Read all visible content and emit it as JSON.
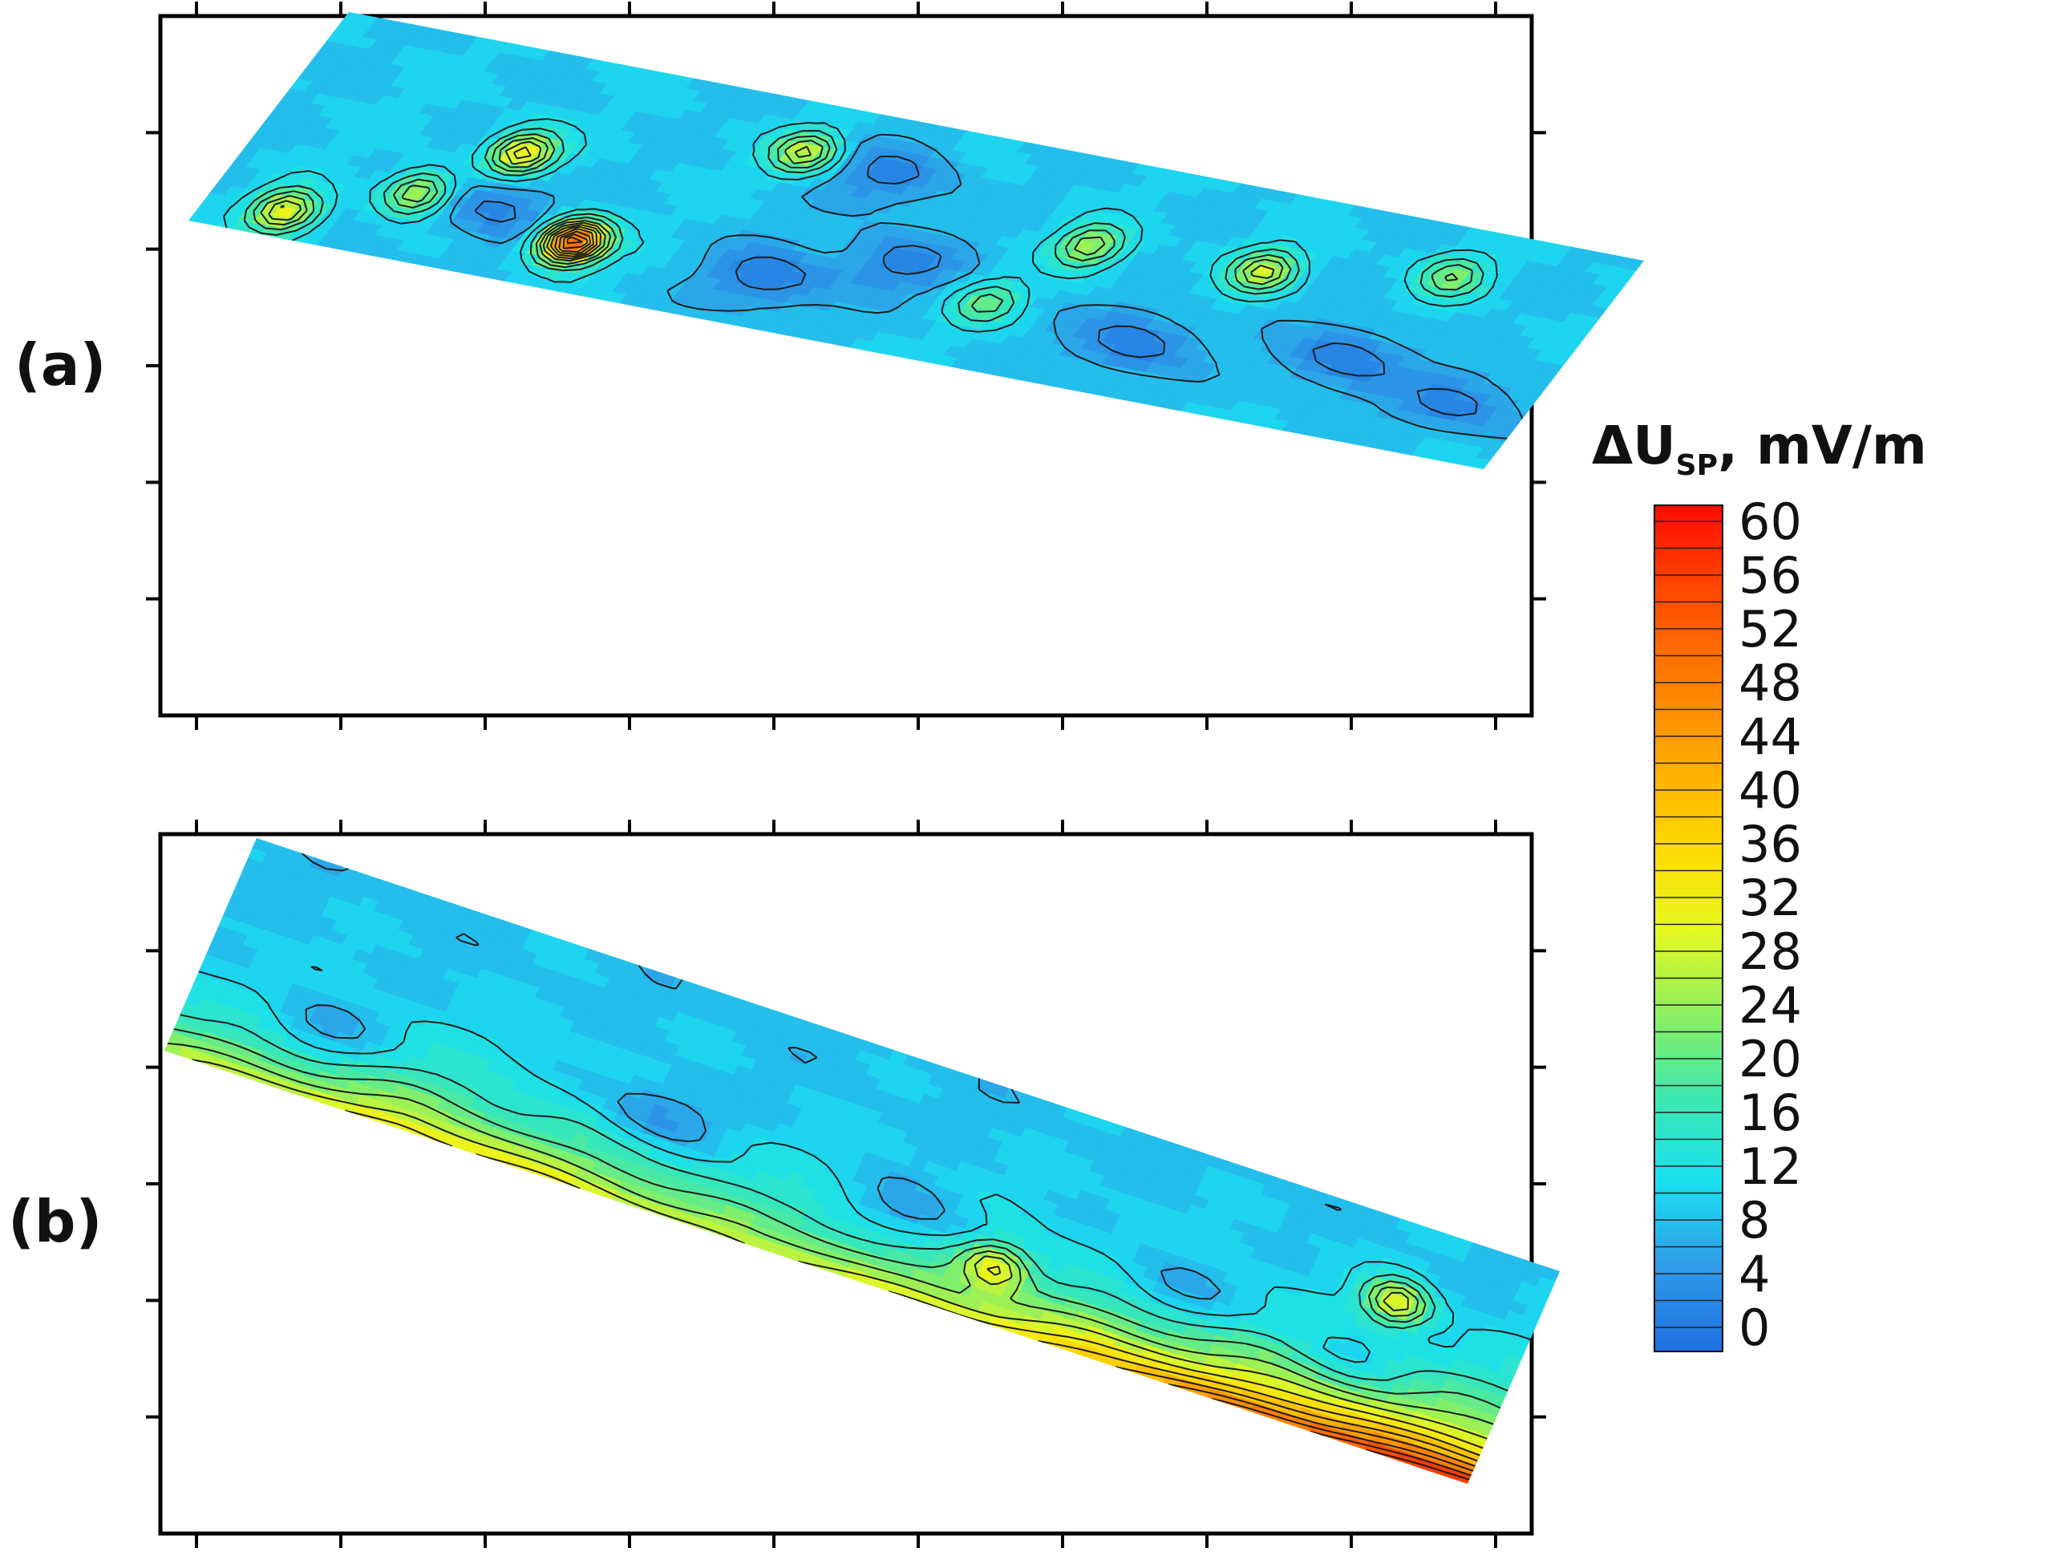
{
  "chart_data": [
    {
      "type": "heatmap",
      "panel_label": "(a)",
      "title": "",
      "xlabel": "",
      "ylabel": "",
      "grid": false,
      "description_shape": "rotated rectangular survey strip",
      "background_level": 10,
      "hotspots": [
        {
          "u": 0.06,
          "v": 0.12,
          "value": 34
        },
        {
          "u": 0.14,
          "v": 0.3,
          "value": 30
        },
        {
          "u": 0.19,
          "v": 0.55,
          "value": 36
        },
        {
          "u": 0.27,
          "v": 0.22,
          "value": 58
        },
        {
          "u": 0.38,
          "v": 0.78,
          "value": 30
        },
        {
          "u": 0.62,
          "v": 0.62,
          "value": 28
        },
        {
          "u": 0.75,
          "v": 0.65,
          "value": 30
        },
        {
          "u": 0.88,
          "v": 0.78,
          "value": 24
        },
        {
          "u": 0.58,
          "v": 0.3,
          "value": 22
        }
      ],
      "lows": [
        {
          "u": 0.2,
          "v": 0.3,
          "value": 3
        },
        {
          "u": 0.42,
          "v": 0.22,
          "value": 2
        },
        {
          "u": 0.5,
          "v": 0.4,
          "value": 3
        },
        {
          "u": 0.7,
          "v": 0.25,
          "value": 2
        },
        {
          "u": 0.45,
          "v": 0.75,
          "value": 3
        },
        {
          "u": 0.85,
          "v": 0.35,
          "value": 2
        },
        {
          "u": 0.95,
          "v": 0.25,
          "value": 3
        }
      ]
    },
    {
      "type": "heatmap",
      "panel_label": "(b)",
      "title": "",
      "xlabel": "",
      "ylabel": "",
      "grid": false,
      "description_shape": "rotated rectangular survey strip",
      "background_level": 9,
      "gradient_edge": "bottom",
      "edge_values": [
        26,
        30,
        34,
        32,
        30,
        28,
        30,
        34,
        40,
        48,
        56,
        60
      ],
      "hotspots": [
        {
          "u": 0.9,
          "v": 0.65,
          "value": 30
        },
        {
          "u": 0.62,
          "v": 0.25,
          "value": 26
        }
      ],
      "lows": [
        {
          "u": 0.1,
          "v": 0.3,
          "value": 2
        },
        {
          "u": 0.35,
          "v": 0.4,
          "value": 2
        },
        {
          "u": 0.55,
          "v": 0.35,
          "value": 3
        },
        {
          "u": 0.75,
          "v": 0.4,
          "value": 2
        },
        {
          "u": 0.88,
          "v": 0.35,
          "value": 3
        }
      ]
    }
  ],
  "colorbar": {
    "title_main": "ΔU",
    "title_sub": "SP",
    "title_unit": ", mV/m",
    "min": 0,
    "max": 60,
    "step": 2,
    "tick_labels": [
      "60",
      "56",
      "52",
      "48",
      "44",
      "40",
      "36",
      "32",
      "28",
      "24",
      "20",
      "16",
      "12",
      "8",
      "4",
      "0"
    ],
    "tick_values": [
      60,
      56,
      52,
      48,
      44,
      40,
      36,
      32,
      28,
      24,
      20,
      16,
      12,
      8,
      4,
      0
    ],
    "color_stops": [
      {
        "value": 0,
        "color": "#1f6fe0"
      },
      {
        "value": 6,
        "color": "#2f9be8"
      },
      {
        "value": 12,
        "color": "#19e0f0"
      },
      {
        "value": 18,
        "color": "#3ce8b0"
      },
      {
        "value": 24,
        "color": "#8ef060"
      },
      {
        "value": 30,
        "color": "#e8f820"
      },
      {
        "value": 36,
        "color": "#ffd800"
      },
      {
        "value": 42,
        "color": "#ffa800"
      },
      {
        "value": 48,
        "color": "#ff7a00"
      },
      {
        "value": 54,
        "color": "#ff4800"
      },
      {
        "value": 60,
        "color": "#ff0c00"
      }
    ]
  }
}
